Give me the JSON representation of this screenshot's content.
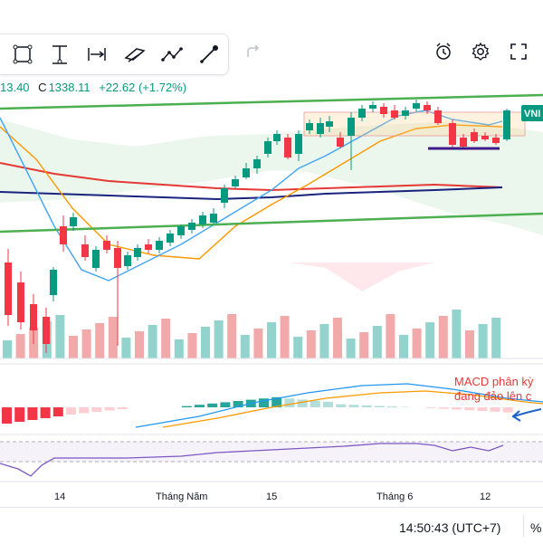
{
  "legend": {
    "low_partial": "13.40",
    "close_label": "C",
    "close_value": "1338.11",
    "change": "+22.62 (+1.72%)"
  },
  "toolbar": {
    "tools": [
      {
        "icon": "rectangle-icon"
      },
      {
        "icon": "anchored-text-icon"
      },
      {
        "icon": "date-range-icon"
      },
      {
        "icon": "parallel-channel-icon"
      },
      {
        "icon": "path-icon"
      },
      {
        "icon": "brush-icon"
      },
      {
        "icon": "redo-icon"
      }
    ],
    "right": [
      {
        "icon": "alert-clock-icon"
      },
      {
        "icon": "gear-icon"
      },
      {
        "icon": "fullscreen-icon"
      }
    ]
  },
  "chart_data": {
    "type": "candlestick",
    "time_labels": [
      "14",
      "Tháng Năm",
      "15",
      "Tháng 6",
      "12"
    ],
    "price_tag": "VNI",
    "annotation": [
      "MACD phân kỳ",
      "đang đảo lên c"
    ],
    "colors": {
      "up": "#089981",
      "down": "#f23645",
      "trend": "#4caf50",
      "ma_red": "#e53935",
      "ma_navy": "#1a237e",
      "ma_blue": "#42a5f5",
      "ma_orange": "#ff9800",
      "rsi": "#7e57c2",
      "annotation": "#e53935"
    }
  },
  "footer": {
    "time": "14:50:43 (UTC+7)",
    "pct": "%"
  }
}
